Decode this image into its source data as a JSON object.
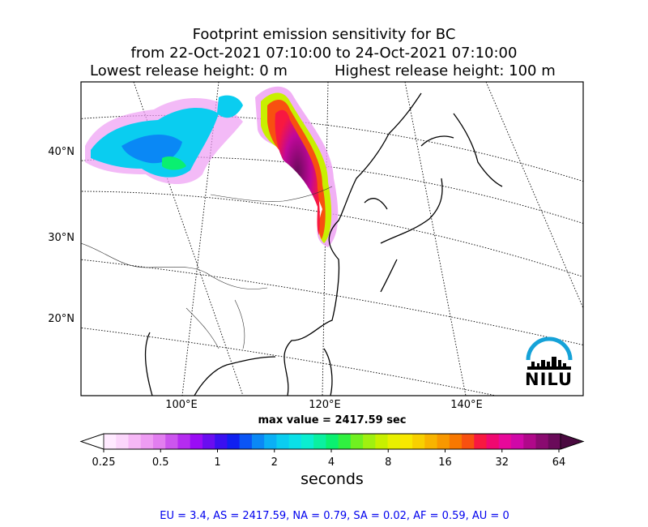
{
  "title": {
    "line1": "Footprint emission sensitivity for BC",
    "line2": "from 22-Oct-2021 07:10:00 to 24-Oct-2021 07:10:00",
    "release_low": "Lowest release height: 0 m",
    "release_high": "Highest release height: 100 m"
  },
  "map": {
    "lat_labels": [
      "40°N",
      "30°N",
      "20°N"
    ],
    "lon_labels": [
      "100°E",
      "120°E",
      "140°E"
    ],
    "max_value": "max value = 2417.59 sec",
    "logo_text": "NILU"
  },
  "colorbar": {
    "ticks": [
      "0.25",
      "0.5",
      "1",
      "2",
      "4",
      "8",
      "16",
      "32",
      "64"
    ],
    "label": "seconds",
    "colors": [
      "#ffeaff",
      "#fbd6fb",
      "#f6b8f6",
      "#ee9cf3",
      "#e27ef0",
      "#cc55ee",
      "#b52cf0",
      "#9a0cf5",
      "#6a0df0",
      "#3a10f0",
      "#1020f0",
      "#0a55f5",
      "#0a88f5",
      "#0ab0f5",
      "#0acdf0",
      "#0ae0e8",
      "#0aeed0",
      "#0af0a0",
      "#0af070",
      "#30f040",
      "#70f020",
      "#a0f010",
      "#c8f000",
      "#e8f000",
      "#f8e800",
      "#f8d000",
      "#f8b400",
      "#f89800",
      "#f87800",
      "#f85010",
      "#f81840",
      "#f00870",
      "#e8089a",
      "#d008a8",
      "#b0088a",
      "#8a0a70",
      "#6a0a5a"
    ]
  },
  "summary": "EU = 3.4,  AS = 2417.59,  NA = 0.79,  SA = 0.02,  AF = 0.59,  AU = 0"
}
